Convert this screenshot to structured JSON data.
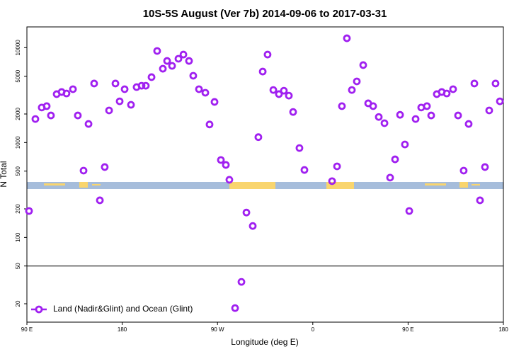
{
  "chart_data": {
    "type": "scatter",
    "title": "10S-5S August (Ver 7b)   2014-09-06 to 2017-03-31",
    "xlabel": "Longitude (deg E)",
    "ylabel": "N Total",
    "x": [
      92,
      98,
      104,
      108.7,
      112.7,
      118.1,
      122.8,
      127.4,
      133.5,
      138.1,
      143.5,
      148.2,
      153.5,
      158.9,
      163.5,
      167.6,
      173.6,
      177.6,
      182.3,
      188.3,
      193.6,
      198.3,
      202.3,
      207.7,
      213,
      218.4,
      222.4,
      227.1,
      233.1,
      237.8,
      243.1,
      247.1,
      252.5,
      258.5,
      262.5,
      267.2,
      273.2,
      277.9,
      281.2,
      286.6,
      292.6,
      297.3,
      303.3,
      308.6,
      312.7,
      317.3,
      322.7,
      328,
      332.7,
      337.4,
      341.4,
      347.4,
      352.1,
      378.2,
      382.9,
      387.5,
      392.2,
      396.9,
      401.6,
      407.6,
      412.3,
      417,
      422.3,
      427.7,
      433,
      437.7,
      442.4,
      447,
      451.1,
      457.1,
      462.4,
      467.8,
      471.8,
      477.1,
      481.8,
      486.5,
      492.5,
      497.2,
      502.5,
      507.2,
      512.6,
      517.9,
      522.6,
      526.6,
      532.6,
      536.7
    ],
    "series": [
      {
        "name": "Land (Nadir&Glint) and Ocean (Glint)",
        "color": "#a020f0",
        "values": [
          190,
          1770,
          2340,
          2420,
          1930,
          3240,
          3410,
          3290,
          3650,
          1930,
          506,
          1570,
          4190,
          246,
          552,
          2180,
          4190,
          2720,
          3650,
          2500,
          3840,
          3970,
          3970,
          4890,
          9230,
          6000,
          7250,
          6430,
          7640,
          8460,
          7250,
          5060,
          3650,
          3350,
          1550,
          2680,
          655,
          581,
          405,
          18,
          34,
          183,
          132,
          1140,
          5600,
          8460,
          3580,
          3240,
          3520,
          3120,
          2100,
          875,
          514,
          392,
          561,
          2420,
          12560,
          3580,
          4410,
          6550,
          2590,
          2420,
          1860,
          1600,
          427,
          665,
          1960,
          955,
          190,
          1770,
          2340,
          2420,
          1930,
          3240,
          3410,
          3290,
          3650,
          1930,
          506,
          1570,
          4190,
          246,
          552,
          2180,
          4190,
          2720
        ]
      }
    ],
    "xlim": [
      90,
      540
    ],
    "xticks": [
      {
        "value": 90,
        "label": "90 E"
      },
      {
        "value": 180,
        "label": "180"
      },
      {
        "value": 270,
        "label": "90 W"
      },
      {
        "value": 360,
        "label": "0"
      },
      {
        "value": 450,
        "label": "90 E"
      },
      {
        "value": 540,
        "label": "180"
      }
    ],
    "ylim": [
      12.8,
      16550
    ],
    "yticks": [
      20,
      50,
      100,
      200,
      500,
      1000,
      2000,
      5000,
      10000
    ],
    "ylog": true,
    "hline": 50,
    "legend": "bottom-left"
  }
}
